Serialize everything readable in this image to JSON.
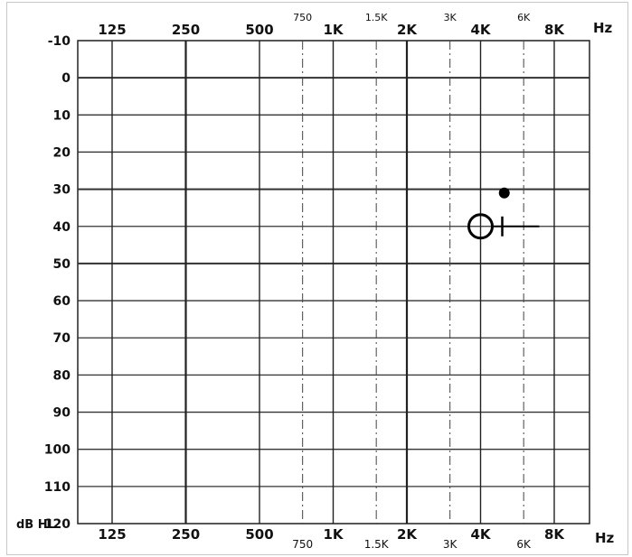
{
  "chart_data": {
    "type": "scatter",
    "title": "",
    "xlabel": "Hz",
    "ylabel": "dB HL",
    "x_scale": "log2",
    "ylim": [
      -10,
      120
    ],
    "y_inverted": true,
    "grid": true,
    "x_major_ticks": [
      {
        "hz": 125,
        "label": "125"
      },
      {
        "hz": 250,
        "label": "250"
      },
      {
        "hz": 500,
        "label": "500"
      },
      {
        "hz": 1000,
        "label": "1K"
      },
      {
        "hz": 2000,
        "label": "2K"
      },
      {
        "hz": 4000,
        "label": "4K"
      },
      {
        "hz": 8000,
        "label": "8K"
      }
    ],
    "x_minor_ticks": [
      {
        "hz": 750,
        "label": "750"
      },
      {
        "hz": 1500,
        "label": "1.5K"
      },
      {
        "hz": 3000,
        "label": "3K"
      },
      {
        "hz": 6000,
        "label": "6K"
      }
    ],
    "y_ticks": [
      -10,
      0,
      10,
      20,
      30,
      40,
      50,
      60,
      70,
      80,
      90,
      100,
      110,
      120
    ],
    "series": [
      {
        "symbol": "filled-dot",
        "points": [
          {
            "hz": 5000,
            "db": 31
          }
        ]
      },
      {
        "symbol": "open-circle-cross",
        "points": [
          {
            "hz": 4000,
            "db": 40
          }
        ]
      }
    ]
  }
}
